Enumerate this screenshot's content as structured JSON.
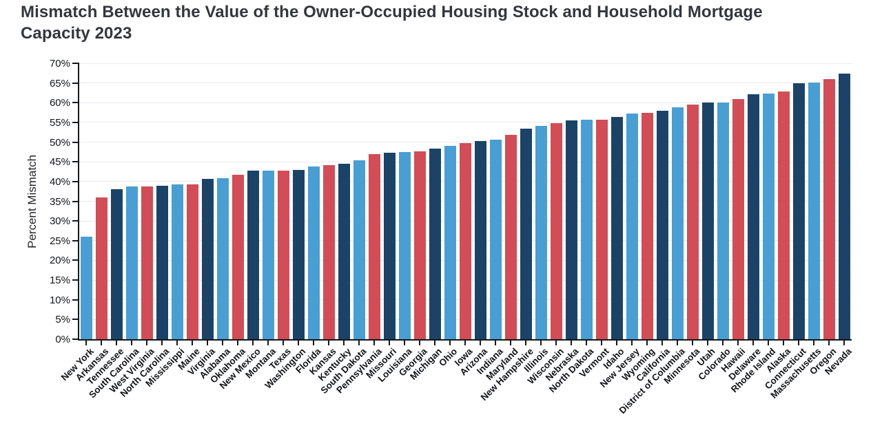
{
  "chart_data": {
    "type": "bar",
    "title": "Mismatch Between the Value of the Owner-Occupied Housing Stock and Household Mortgage Capacity 2023",
    "xlabel": "",
    "ylabel": "Percent Mismatch",
    "ylim": [
      0,
      70
    ],
    "ytick_step": 5,
    "ytick_suffix": "%",
    "grid": true,
    "legend": "none",
    "sort_order": "ascending",
    "color_cycle": [
      "#499FD3",
      "#D24D55",
      "#1B4368"
    ],
    "categories": [
      "New York",
      "Arkansas",
      "Tennessee",
      "South Carolina",
      "West Virginia",
      "North Carolina",
      "Mississippi",
      "Maine",
      "Virginia",
      "Alabama",
      "Oklahoma",
      "New Mexico",
      "Montana",
      "Texas",
      "Washington",
      "Florida",
      "Kansas",
      "Kentucky",
      "South Dakota",
      "Pennsylvania",
      "Missouri",
      "Louisiana",
      "Georgia",
      "Michigan",
      "Ohio",
      "Iowa",
      "Arizona",
      "Indiana",
      "Maryland",
      "New Hampshire",
      "Illinois",
      "Wisconsin",
      "Nebraska",
      "North Dakota",
      "Vermont",
      "Idaho",
      "New Jersey",
      "Wyoming",
      "California",
      "District of Columbia",
      "Minnesota",
      "Utah",
      "Colorado",
      "Hawaii",
      "Delaware",
      "Rhode Island",
      "Alaska",
      "Connecticut",
      "Massachusetts",
      "Oregon",
      "Nevada"
    ],
    "values": [
      26.0,
      36.0,
      38.0,
      38.8,
      38.8,
      39.0,
      39.2,
      39.2,
      40.6,
      40.8,
      41.8,
      42.7,
      42.8,
      42.8,
      43.0,
      43.8,
      44.2,
      44.6,
      45.4,
      47.0,
      47.3,
      47.5,
      47.6,
      48.4,
      49.0,
      49.7,
      50.3,
      50.6,
      51.8,
      53.4,
      54.1,
      54.8,
      55.5,
      55.7,
      55.6,
      56.3,
      57.3,
      57.4,
      57.9,
      58.8,
      59.6,
      60.0,
      60.0,
      61.0,
      62.2,
      62.4,
      62.8,
      64.9,
      65.1,
      66.0,
      67.3
    ]
  }
}
